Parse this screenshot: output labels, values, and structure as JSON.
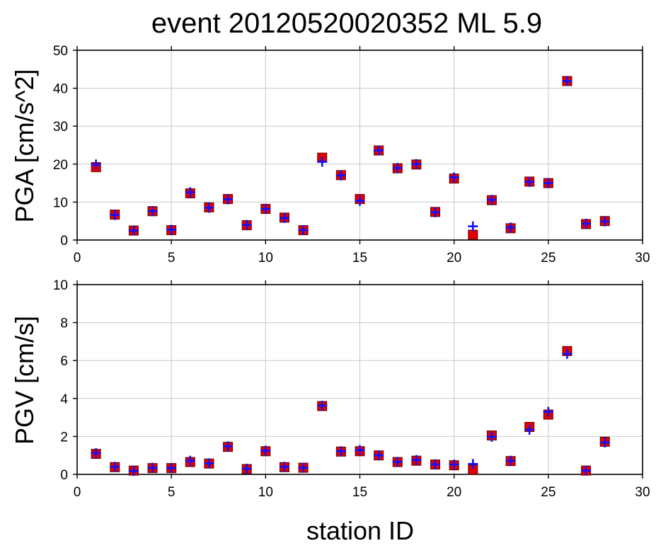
{
  "chart_data": {
    "title": "event 20120520020352 ML 5.9",
    "xlabel": "station ID",
    "panels": [
      {
        "type": "scatter",
        "ylabel": "PGA [cm/s^2]",
        "xlim": [
          0,
          30
        ],
        "ylim": [
          0,
          50
        ],
        "xticks": [
          0,
          5,
          10,
          15,
          20,
          25,
          30
        ],
        "yticks": [
          0,
          10,
          20,
          30,
          40,
          50
        ],
        "grid": true,
        "x": [
          1,
          2,
          3,
          4,
          5,
          6,
          7,
          8,
          9,
          10,
          11,
          12,
          13,
          14,
          15,
          16,
          17,
          18,
          19,
          20,
          21,
          22,
          23,
          24,
          25,
          26,
          27,
          28
        ],
        "series": [
          {
            "marker": "square",
            "color": "#e00000",
            "values": [
              19.2,
              6.7,
              2.5,
              7.6,
              2.6,
              12.3,
              8.6,
              10.8,
              3.9,
              8.2,
              5.9,
              2.6,
              21.7,
              17.1,
              10.8,
              23.6,
              18.9,
              19.9,
              7.4,
              16.2,
              1.4,
              10.5,
              3.1,
              15.4,
              15.0,
              41.9,
              4.2,
              5.0
            ]
          },
          {
            "marker": "plus",
            "color": "#1010ff",
            "values": [
              19.9,
              6.6,
              2.5,
              7.6,
              2.7,
              12.6,
              8.5,
              10.7,
              4.0,
              8.2,
              5.8,
              2.6,
              20.6,
              17.0,
              10.3,
              23.6,
              19.0,
              20.0,
              7.3,
              16.5,
              3.6,
              10.6,
              3.3,
              15.3,
              15.0,
              41.9,
              4.3,
              4.9
            ]
          }
        ]
      },
      {
        "type": "scatter",
        "ylabel": "PGV [cm/s]",
        "xlim": [
          0,
          30
        ],
        "ylim": [
          0,
          10
        ],
        "xticks": [
          0,
          5,
          10,
          15,
          20,
          25,
          30
        ],
        "yticks": [
          0,
          2,
          4,
          6,
          8,
          10
        ],
        "grid": true,
        "x": [
          1,
          2,
          3,
          4,
          5,
          6,
          7,
          8,
          9,
          10,
          11,
          12,
          13,
          14,
          15,
          16,
          17,
          18,
          19,
          20,
          21,
          22,
          23,
          24,
          25,
          26,
          27,
          28
        ],
        "series": [
          {
            "marker": "square",
            "color": "#e00000",
            "values": [
              1.08,
              0.38,
              0.2,
              0.33,
              0.33,
              0.65,
              0.57,
              1.45,
              0.28,
              1.22,
              0.38,
              0.35,
              3.6,
              1.2,
              1.22,
              1.0,
              0.65,
              0.72,
              0.52,
              0.48,
              0.25,
              2.05,
              0.7,
              2.5,
              3.15,
              6.5,
              0.2,
              1.72
            ]
          },
          {
            "marker": "plus",
            "color": "#1010ff",
            "values": [
              1.12,
              0.4,
              0.18,
              0.35,
              0.33,
              0.72,
              0.58,
              1.48,
              0.3,
              1.25,
              0.4,
              0.35,
              3.62,
              1.22,
              1.28,
              1.0,
              0.66,
              0.76,
              0.53,
              0.52,
              0.55,
              1.98,
              0.72,
              2.35,
              3.3,
              6.35,
              0.2,
              1.68
            ]
          }
        ]
      }
    ]
  }
}
